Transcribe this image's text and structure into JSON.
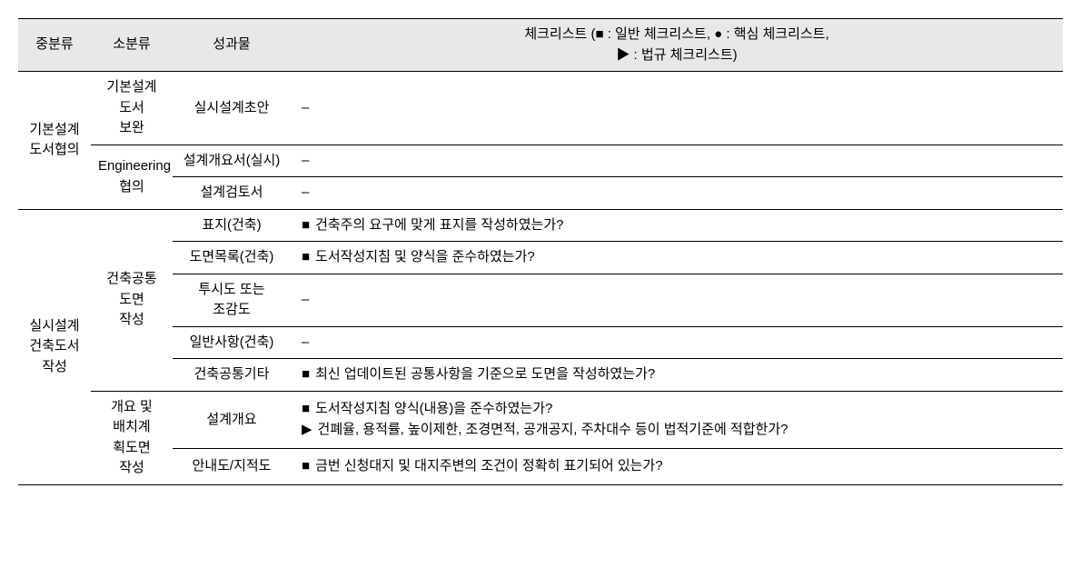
{
  "headers": {
    "col1": "중분류",
    "col2": "소분류",
    "col3": "성과물",
    "col4": "체크리스트 (■ : 일반 체크리스트, ● : 핵심 체크리스트,\n▶ : 법규 체크리스트)"
  },
  "group1": {
    "mid": "기본설계도서협의",
    "sub1": "기본설계\n도서\n보완",
    "sub1_out1": "실시설계초안",
    "sub1_check1": "–",
    "sub2": "Engineering\n협의",
    "sub2_out1": "설계개요서(실시)",
    "sub2_check1": "–",
    "sub2_out2": "설계검토서",
    "sub2_check2": "–"
  },
  "group2": {
    "mid": "실시설계\n건축도서\n작성",
    "sub1": "건축공통\n도면\n작성",
    "sub1_out1": "표지(건축)",
    "sub1_check1_marker": "■",
    "sub1_check1_text": "건축주의 요구에 맞게 표지를 작성하였는가?",
    "sub1_out2": "도면목록(건축)",
    "sub1_check2_marker": "■",
    "sub1_check2_text": "도서작성지침 및 양식을 준수하였는가?",
    "sub1_out3": "투시도 또는\n조감도",
    "sub1_check3": "–",
    "sub1_out4": "일반사항(건축)",
    "sub1_check4": "–",
    "sub1_out5": "건축공통기타",
    "sub1_check5_marker": "■",
    "sub1_check5_text": "최신 업데이트된 공통사항을 기준으로 도면을 작성하였는가?",
    "sub2": "개요 및\n배치계\n획도면\n작성",
    "sub2_out1": "설계개요",
    "sub2_check1a_marker": "■",
    "sub2_check1a_text": "도서작성지침 양식(내용)을 준수하였는가?",
    "sub2_check1b_marker": "▶",
    "sub2_check1b_text": "건폐율, 용적률, 높이제한, 조경면적, 공개공지, 주차대수 등이 법적기준에 적합한가?",
    "sub2_out2": "안내도/지적도",
    "sub2_check2_marker": "■",
    "sub2_check2_text": "금번 신청대지 및 대지주변의 조건이 정확히 표기되어 있는가?"
  }
}
